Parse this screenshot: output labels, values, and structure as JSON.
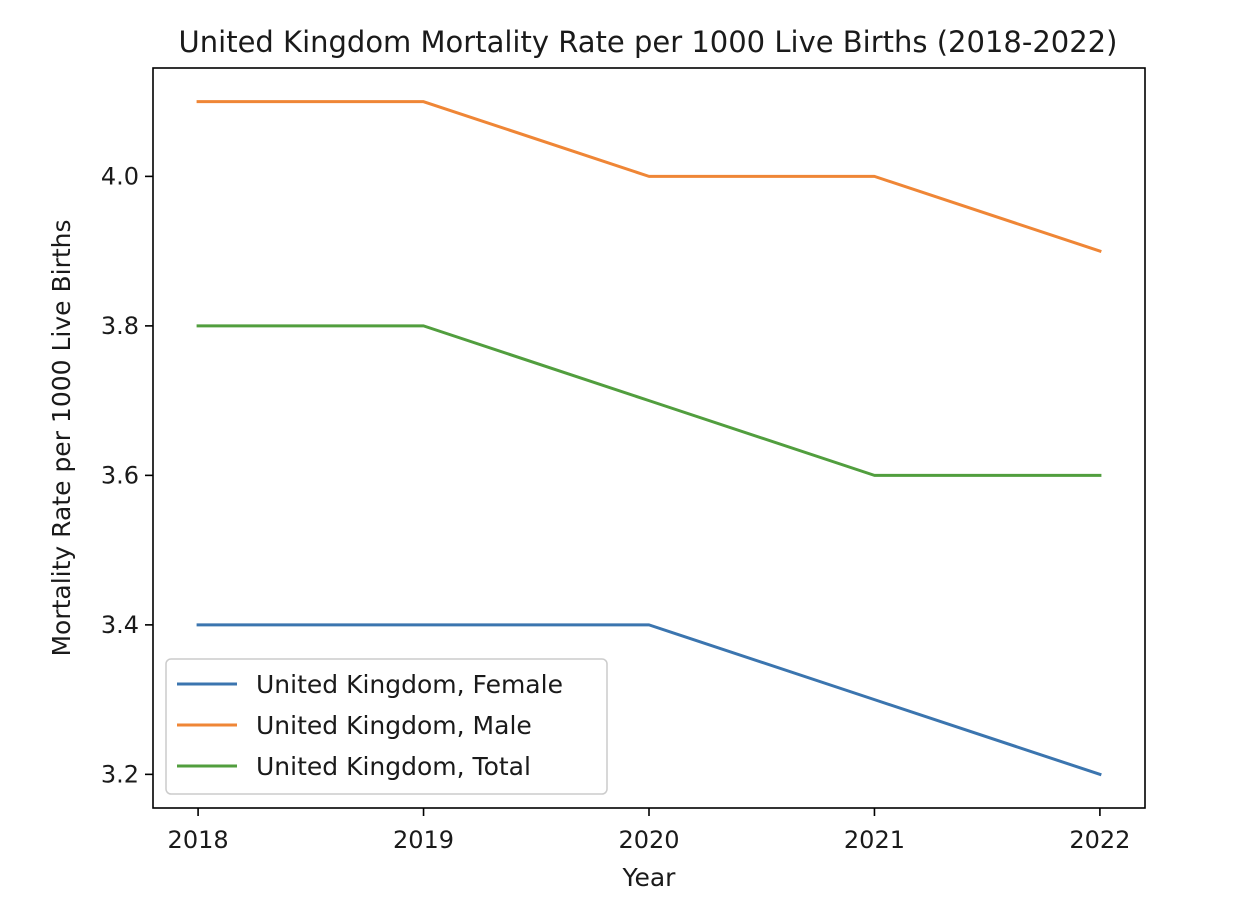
{
  "chart_data": {
    "type": "line",
    "title": "United Kingdom Mortality Rate per 1000 Live Births (2018-2022)",
    "xlabel": "Year",
    "ylabel": "Mortality Rate per 1000 Live Births",
    "x": [
      2018,
      2019,
      2020,
      2021,
      2022
    ],
    "x_tick_labels": [
      "2018",
      "2019",
      "2020",
      "2021",
      "2022"
    ],
    "y_ticks": [
      3.2,
      3.4,
      3.6,
      3.8,
      4.0
    ],
    "y_tick_labels": [
      "3.2",
      "3.4",
      "3.6",
      "3.8",
      "4.0"
    ],
    "xlim": [
      2017.8,
      2022.2
    ],
    "ylim": [
      3.155,
      4.145
    ],
    "grid": false,
    "legend_position": "lower-left",
    "series": [
      {
        "name": "United Kingdom, Female",
        "color": "#3b75af",
        "values": [
          3.4,
          3.4,
          3.4,
          3.3,
          3.2
        ]
      },
      {
        "name": "United Kingdom, Male",
        "color": "#ef8636",
        "values": [
          4.1,
          4.1,
          4.0,
          4.0,
          3.9
        ]
      },
      {
        "name": "United Kingdom, Total",
        "color": "#519e3e",
        "values": [
          3.8,
          3.8,
          3.7,
          3.6,
          3.6
        ]
      }
    ]
  }
}
